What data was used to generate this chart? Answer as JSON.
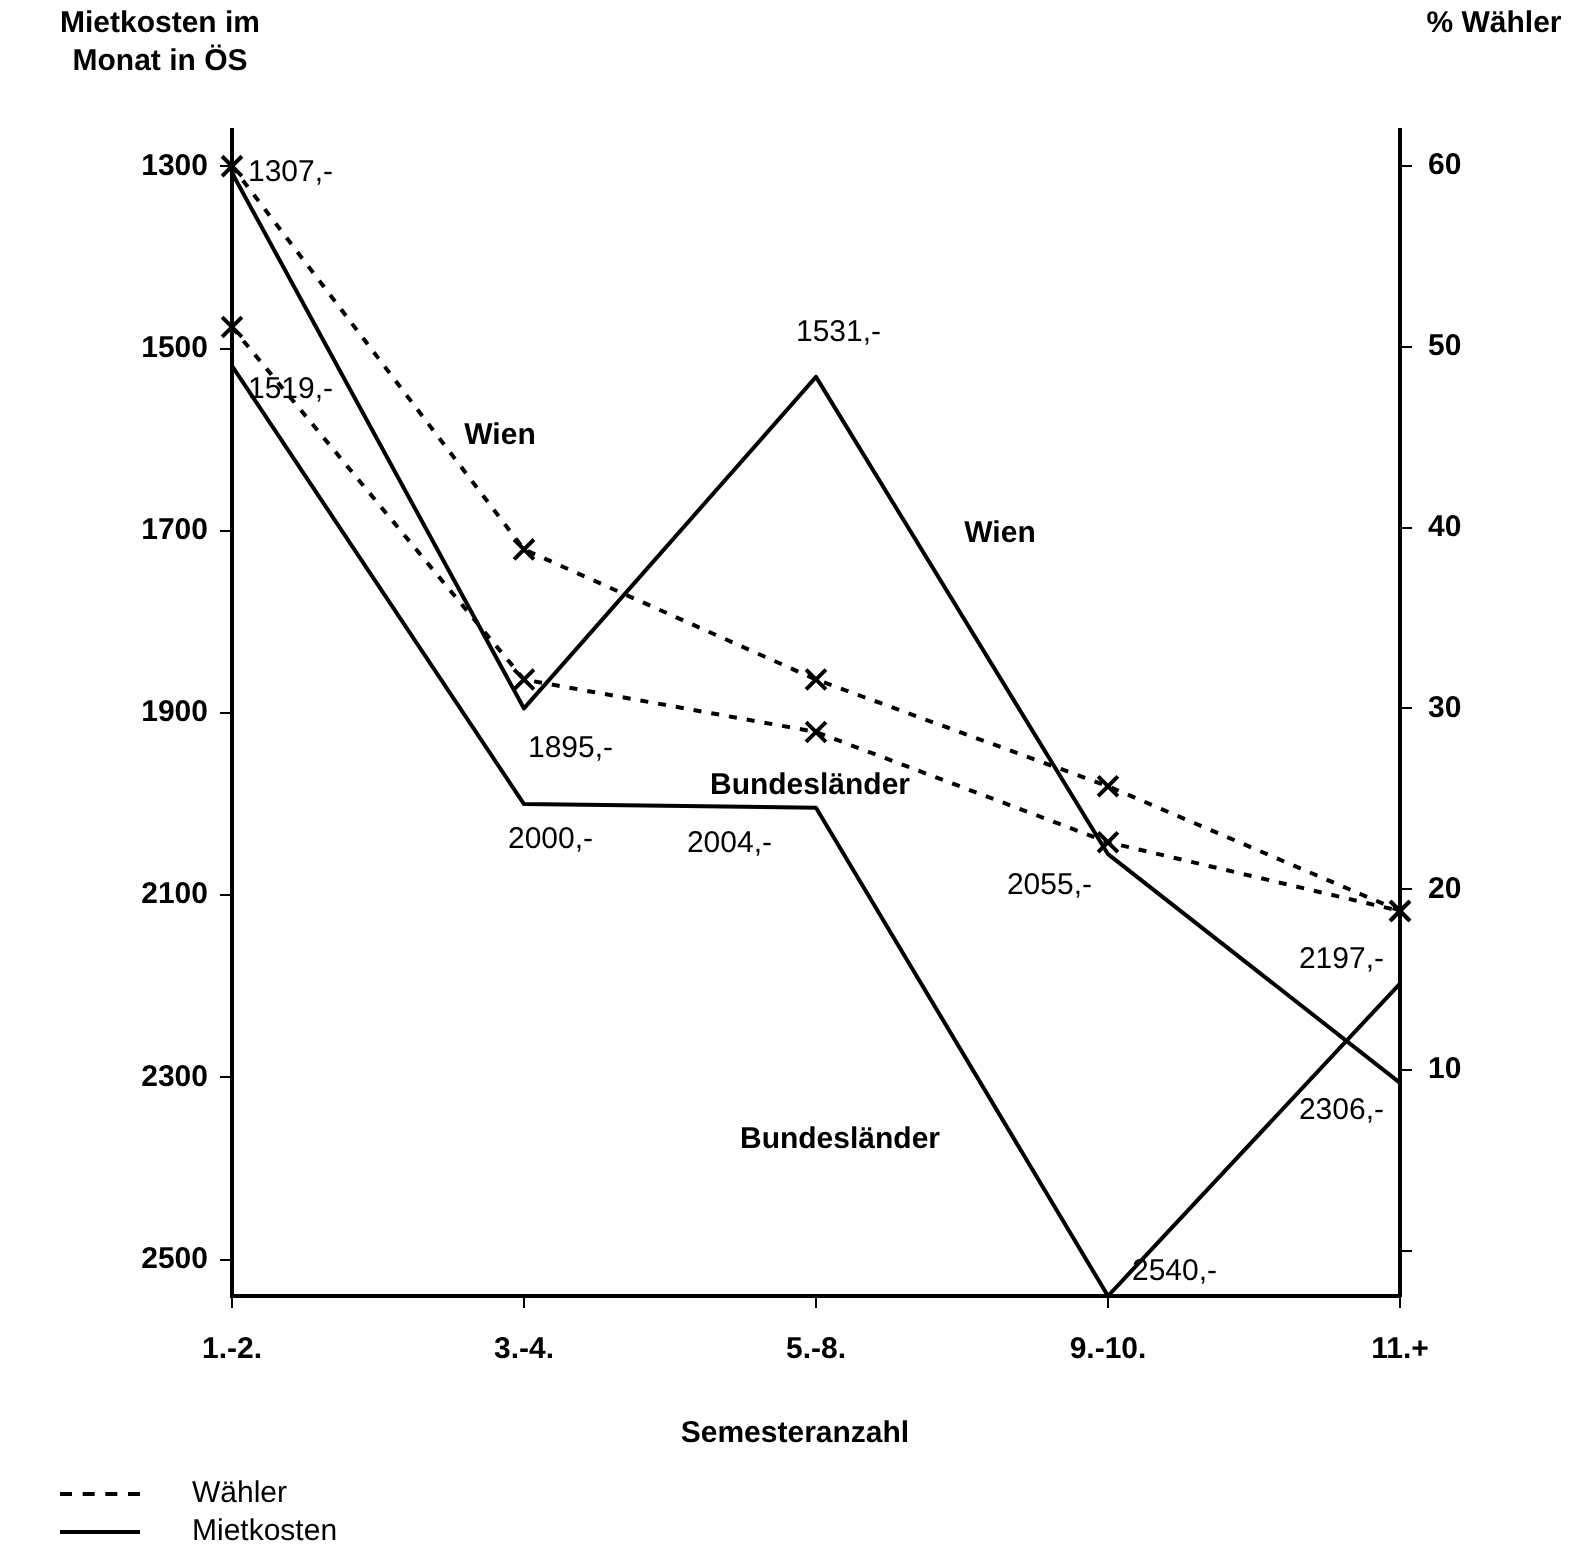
{
  "chart_data": {
    "type": "line",
    "xlabel": "Semesteranzahl",
    "ylabel": "Mietkosten im Monat in ÖS",
    "y2label": "% Wähler",
    "categories": [
      "1.-2.",
      "3.-4.",
      "5.-8.",
      "9.-10.",
      "11.+"
    ],
    "series": [
      {
        "name": "Wien",
        "color": "#000000",
        "axis": "y2",
        "line_style": "dashed",
        "marker": "cross",
        "values": [
          60,
          38.8,
          31.6,
          25.7,
          18.8
        ]
      },
      {
        "name": "Bundesländer",
        "color": "#000000",
        "axis": "y2",
        "line_style": "dashed",
        "marker": "cross",
        "values": [
          51.1,
          31.6,
          28.7,
          22.6,
          18.8
        ]
      },
      {
        "name": "Wien",
        "color": "#000000",
        "line_style": "solid",
        "marker": "none",
        "values": [
          1307,
          1895,
          1531,
          2055,
          2306
        ],
        "value_labels": [
          "1307,-",
          "1895,-",
          "1531,-",
          "2055,-",
          "2306,-"
        ]
      },
      {
        "name": "Bundesländer",
        "color": "#000000",
        "line_style": "solid",
        "marker": "none",
        "values": [
          1519,
          2000,
          2004,
          2540,
          2197
        ],
        "value_labels": [
          "1519,-",
          "2000,-",
          "2004,-",
          "2540,-",
          "2197,-"
        ]
      }
    ],
    "ylim": [
      2540,
      1260
    ],
    "yticks": [
      1300,
      1500,
      1700,
      1900,
      2100,
      2300,
      2500
    ],
    "y2lim": [
      -2.5,
      62
    ],
    "y2ticks": [
      {
        "value": 0,
        "label": null
      },
      10,
      20,
      30,
      40,
      50,
      60
    ],
    "grid": false,
    "legend": false,
    "annotations": [
      "Wähler",
      "Mietkosten"
    ]
  }
}
